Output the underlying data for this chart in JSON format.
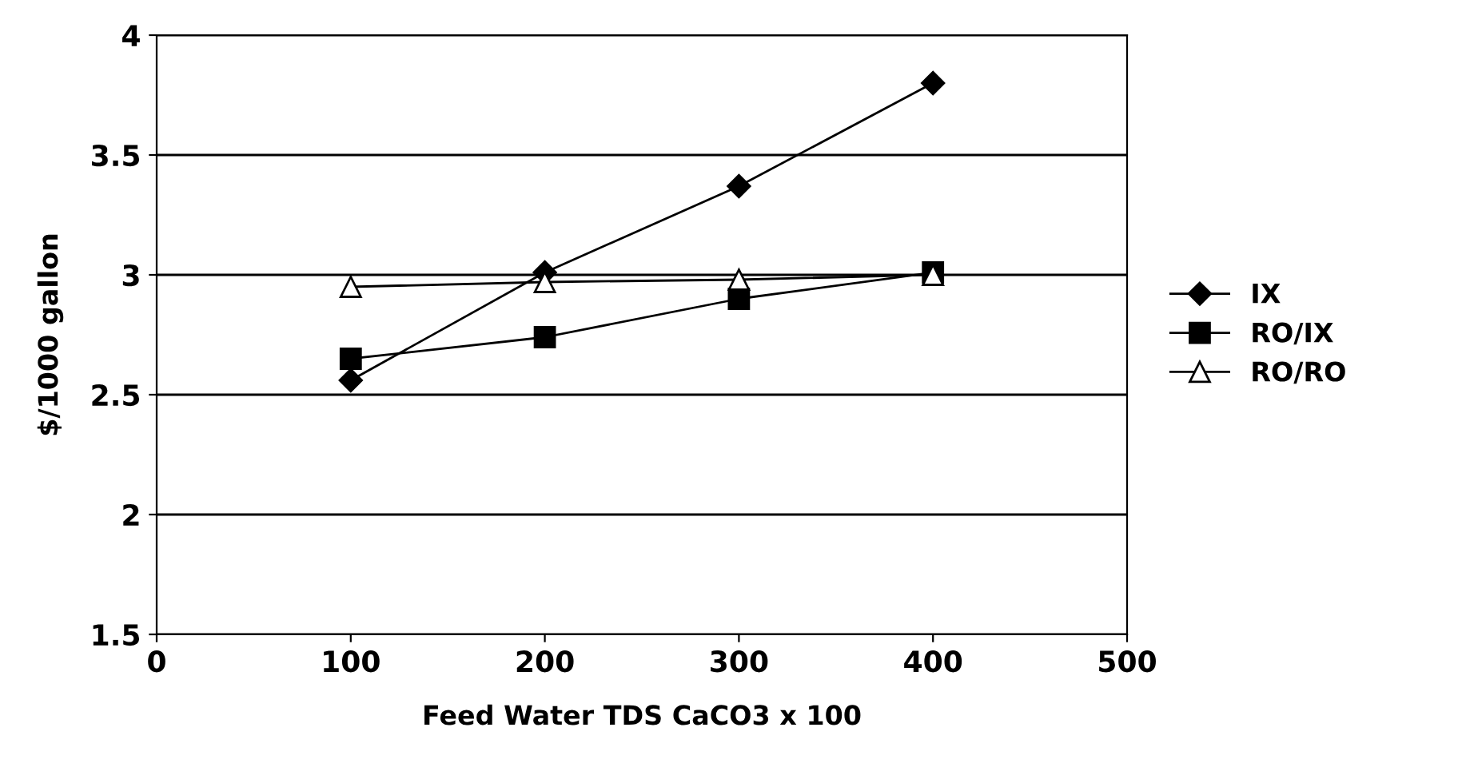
{
  "chart_data": {
    "type": "line",
    "xlabel": "Feed Water TDS CaCO3 x 100",
    "ylabel": "$/1000 gallon",
    "x": [
      100,
      200,
      300,
      400
    ],
    "series": [
      {
        "name": "IX",
        "color": "#000000",
        "marker": "diamond",
        "values": [
          2.56,
          3.01,
          3.37,
          3.8
        ]
      },
      {
        "name": "RO/IX",
        "color": "#000000",
        "marker": "square",
        "values": [
          2.65,
          2.74,
          2.9,
          3.01
        ]
      },
      {
        "name": "RO/RO",
        "color": "#000000",
        "marker": "triangle",
        "values": [
          2.95,
          2.97,
          2.98,
          3.0
        ]
      }
    ],
    "xlim": [
      0,
      500
    ],
    "xticks": [
      0,
      100,
      200,
      300,
      400,
      500
    ],
    "ylim": [
      1.5,
      4
    ],
    "yticks": [
      1.5,
      2,
      2.5,
      3,
      3.5,
      4
    ],
    "grid": "y",
    "legend": "right",
    "line_style": "solid"
  }
}
